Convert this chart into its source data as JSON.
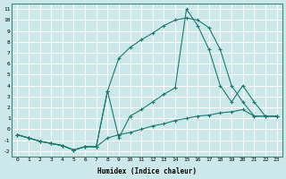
{
  "xlabel": "Humidex (Indice chaleur)",
  "bg_color": "#cce8ea",
  "grid_color": "#ffffff",
  "line_color": "#1a7a6e",
  "xlim": [
    -0.5,
    23.5
  ],
  "ylim": [
    -2.5,
    11.5
  ],
  "xticks": [
    0,
    1,
    2,
    3,
    4,
    5,
    6,
    7,
    8,
    9,
    10,
    11,
    12,
    13,
    14,
    15,
    16,
    17,
    18,
    19,
    20,
    21,
    22,
    23
  ],
  "yticks": [
    -2,
    -1,
    0,
    1,
    2,
    3,
    4,
    5,
    6,
    7,
    8,
    9,
    10,
    11
  ],
  "line1_x": [
    0,
    1,
    2,
    3,
    4,
    5,
    6,
    7,
    8,
    9,
    10,
    11,
    12,
    13,
    14,
    15,
    16,
    17,
    18,
    19,
    20,
    21,
    22,
    23
  ],
  "line1_y": [
    -0.5,
    -0.8,
    -1.1,
    -1.3,
    -1.5,
    -1.9,
    -1.6,
    -1.6,
    3.5,
    6.5,
    7.5,
    8.2,
    8.8,
    9.5,
    10.0,
    10.2,
    10.0,
    9.3,
    7.3,
    4.0,
    2.5,
    1.2,
    1.2,
    1.2
  ],
  "line2_x": [
    0,
    1,
    2,
    3,
    4,
    5,
    6,
    7,
    8,
    9,
    10,
    11,
    12,
    13,
    14,
    15,
    16,
    17,
    18,
    19,
    20,
    21,
    22,
    23
  ],
  "line2_y": [
    -0.5,
    -0.8,
    -1.1,
    -1.3,
    -1.5,
    -1.9,
    -1.6,
    -1.6,
    3.5,
    -0.8,
    1.2,
    1.8,
    2.5,
    3.2,
    3.8,
    11.0,
    9.5,
    7.3,
    4.0,
    2.5,
    4.0,
    2.5,
    1.2,
    1.2
  ],
  "line3_x": [
    0,
    1,
    2,
    3,
    4,
    5,
    6,
    7,
    8,
    9,
    10,
    11,
    12,
    13,
    14,
    15,
    16,
    17,
    18,
    19,
    20,
    21,
    22,
    23
  ],
  "line3_y": [
    -0.5,
    -0.8,
    -1.1,
    -1.3,
    -1.5,
    -1.9,
    -1.6,
    -1.6,
    -0.8,
    -0.5,
    -0.3,
    0.0,
    0.3,
    0.5,
    0.8,
    1.0,
    1.2,
    1.3,
    1.5,
    1.6,
    1.8,
    1.2,
    1.2,
    1.2
  ]
}
